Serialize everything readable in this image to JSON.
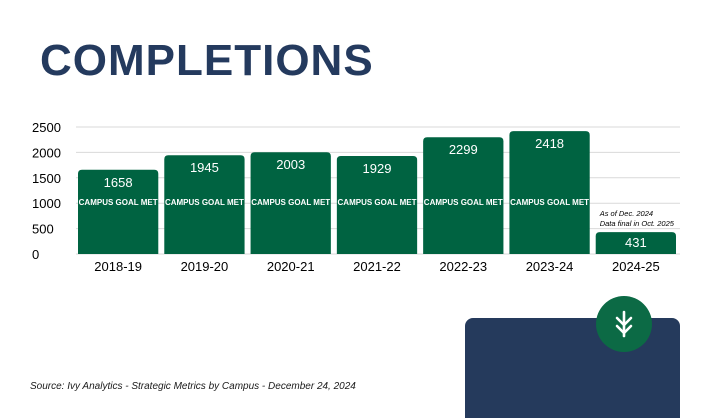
{
  "title": "COMPLETIONS",
  "source": "Source: Ivy Analytics - Strategic Metrics by Campus - December 24, 2024",
  "colors": {
    "bar": "#006341",
    "title": "#243a5e",
    "panel": "#253a5c",
    "logo": "#0c6a45"
  },
  "logo_icon": "ivy-leaf-icon",
  "chart_data": {
    "type": "bar",
    "title": "",
    "xlabel": "",
    "ylabel": "",
    "categories": [
      "2018-19",
      "2019-20",
      "2020-21",
      "2021-22",
      "2022-23",
      "2023-24",
      "2024-25"
    ],
    "values": [
      1658,
      1945,
      2003,
      1929,
      2299,
      2418,
      431
    ],
    "bar_labels": [
      "CAMPUS GOAL MET",
      "CAMPUS GOAL MET",
      "CAMPUS GOAL MET",
      "CAMPUS GOAL MET",
      "CAMPUS GOAL MET",
      "CAMPUS GOAL MET",
      ""
    ],
    "yticks": [
      0,
      500,
      1000,
      1500,
      2000,
      2500
    ],
    "ylim": [
      0,
      2500
    ],
    "grid": true,
    "annotation": [
      "As of Dec. 2024",
      "Data final in Oct. 2025"
    ]
  }
}
